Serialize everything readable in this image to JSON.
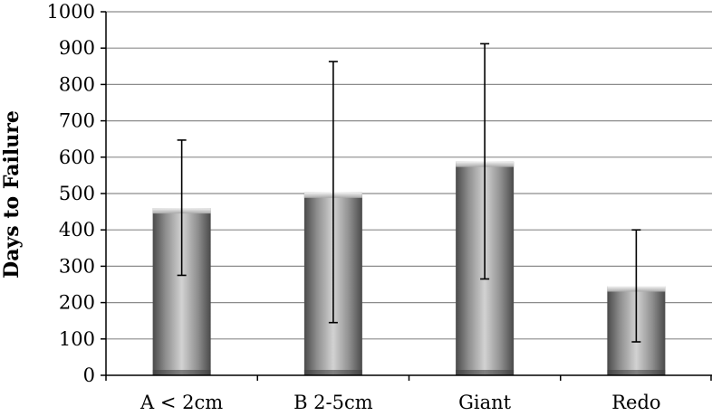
{
  "chart_data": {
    "type": "bar",
    "title": "",
    "xlabel": "",
    "ylabel": "Days to Failure",
    "categories": [
      "A < 2cm",
      "B 2-5cm",
      "Giant",
      "Redo"
    ],
    "series": [
      {
        "values": [
          460,
          503,
          588,
          245
        ],
        "error_low": [
          275,
          145,
          265,
          92
        ],
        "error_high": [
          647,
          863,
          912,
          400
        ]
      }
    ],
    "ylim": [
      0,
      1000
    ],
    "y_ticks": [
      0,
      100,
      200,
      300,
      400,
      500,
      600,
      700,
      800,
      900,
      1000
    ],
    "grid": true,
    "legend": "none",
    "colors": {
      "bar_dark": "#4a4a4a",
      "bar_light": "#d2d2d2",
      "grid": "#8c8c8c",
      "axis": "#000000"
    }
  }
}
